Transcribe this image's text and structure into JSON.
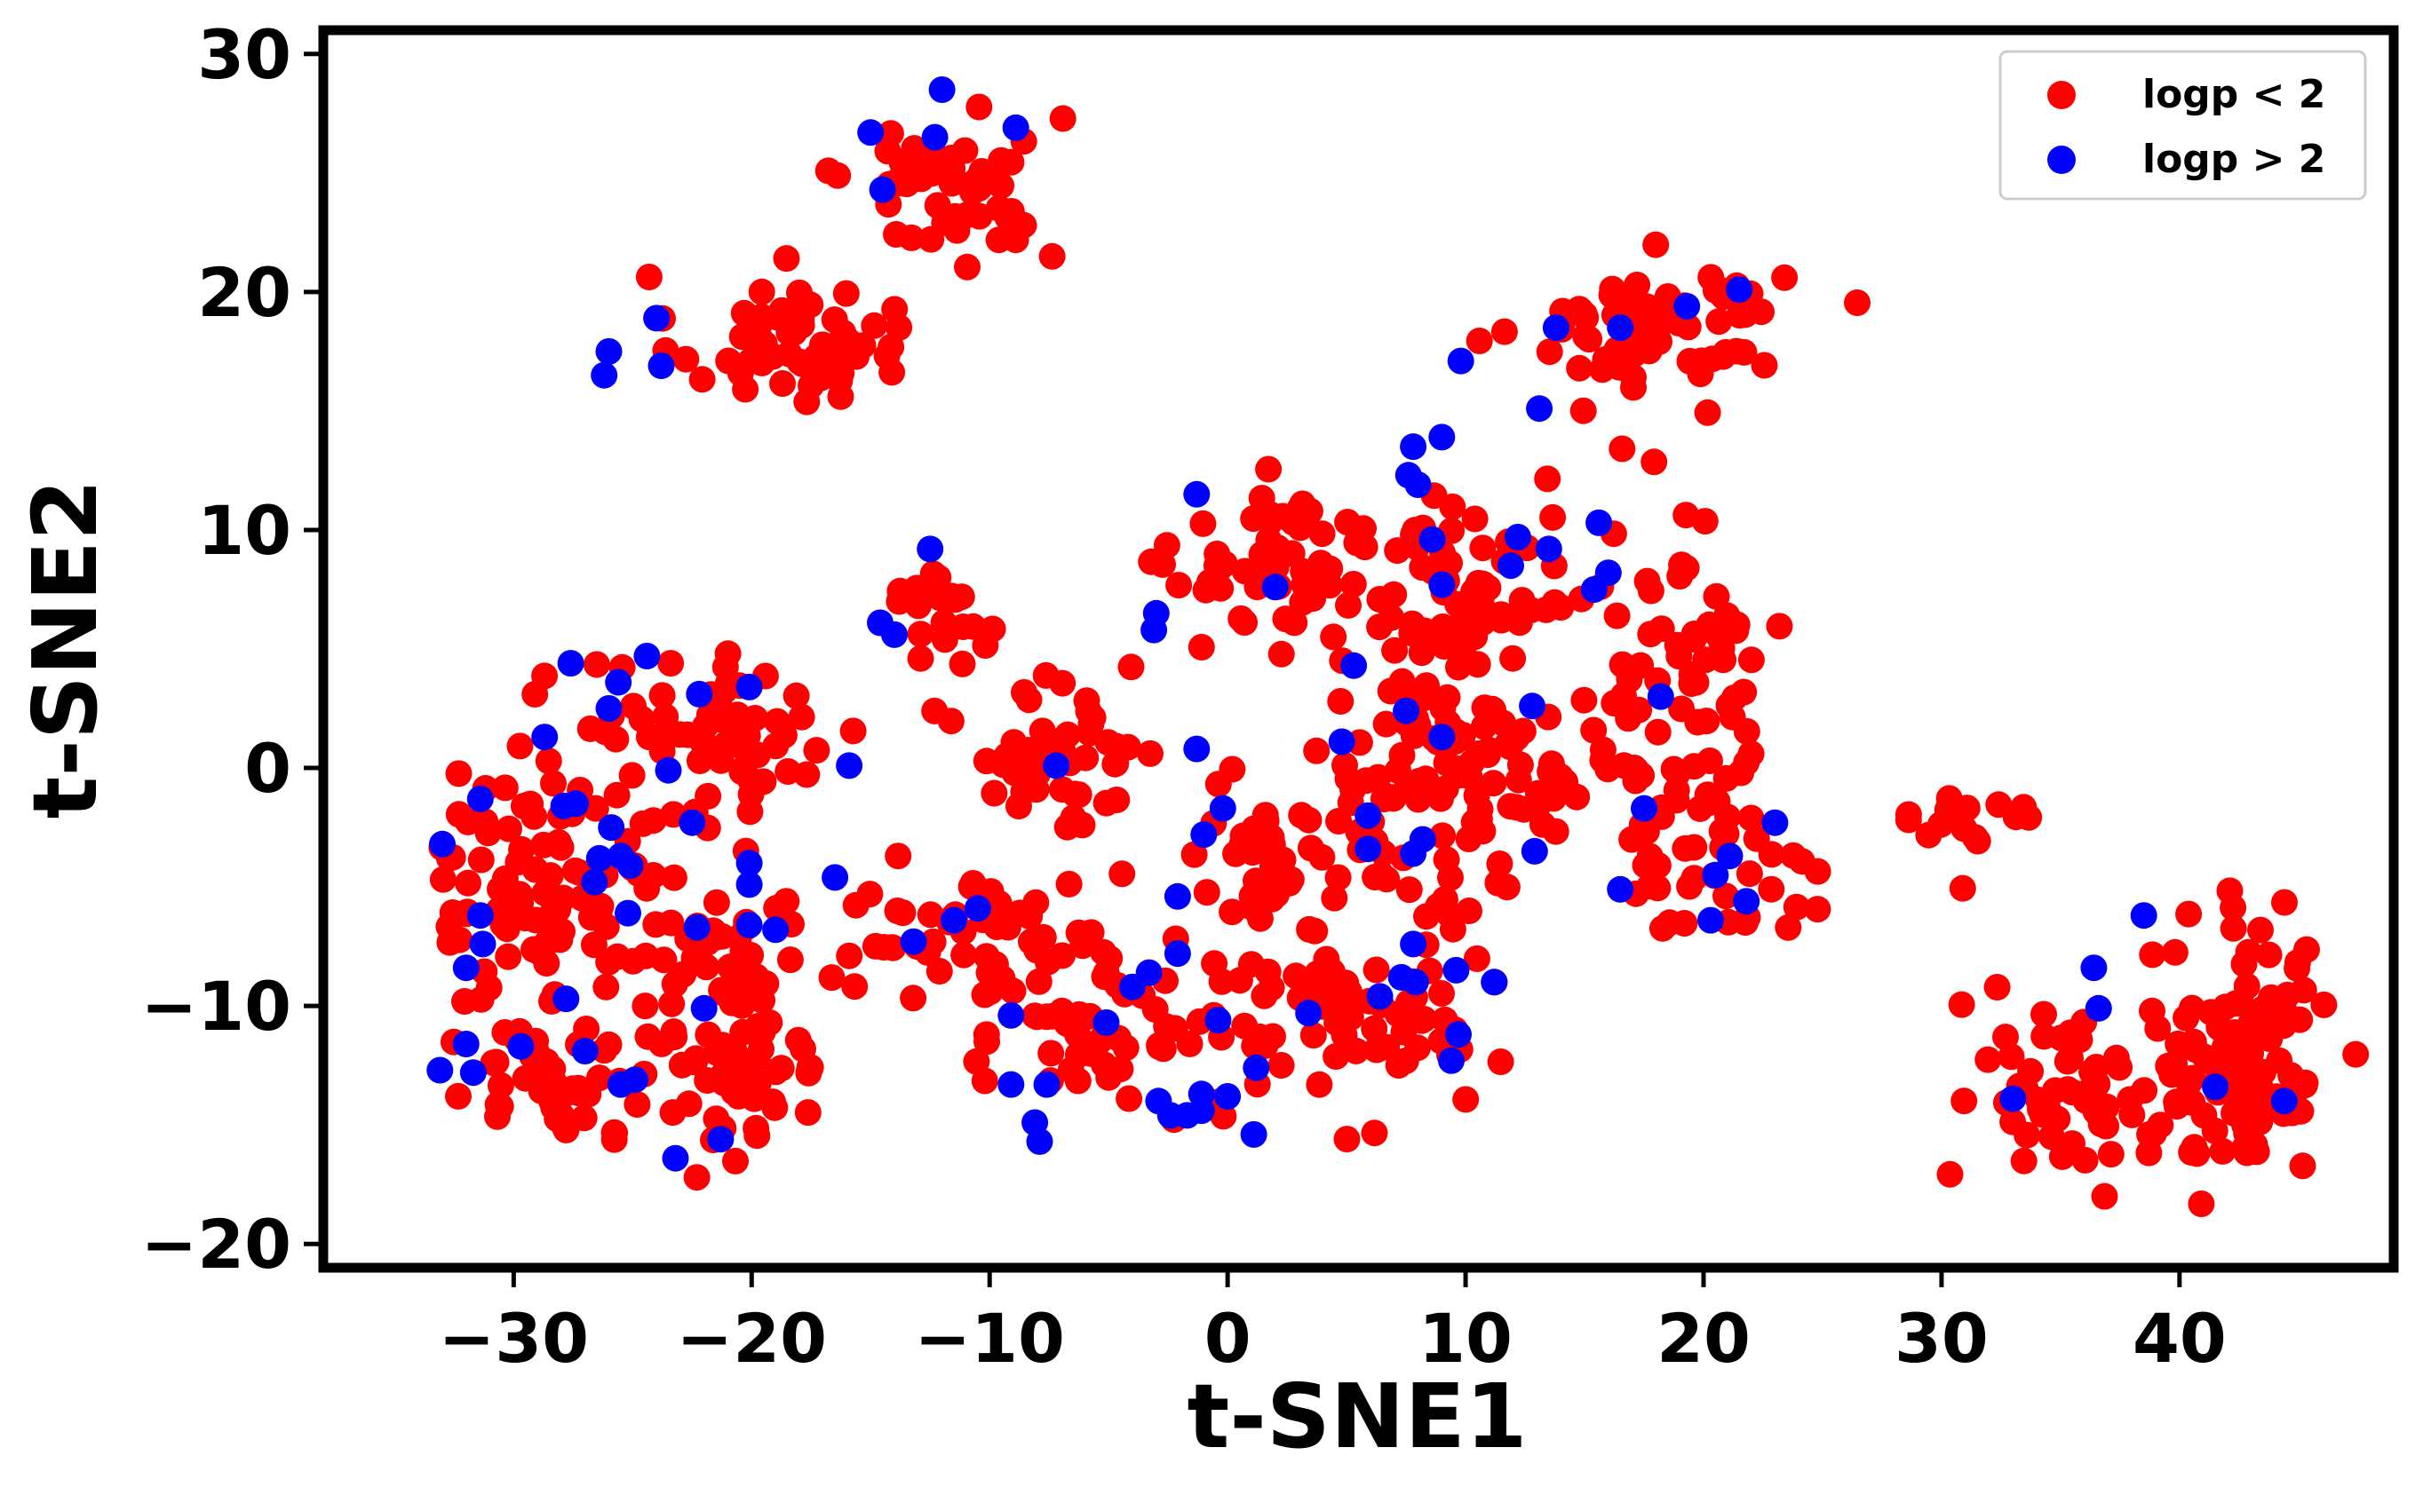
{
  "chart_data": {
    "type": "scatter",
    "title": "",
    "xlabel": "t-SNE1",
    "ylabel": "t-SNE2",
    "xlim": [
      -38,
      49
    ],
    "ylim": [
      -21,
      31
    ],
    "xticks": [
      -30,
      -20,
      -10,
      0,
      10,
      20,
      30,
      40
    ],
    "yticks": [
      -20,
      -10,
      0,
      10,
      20,
      30
    ],
    "xtick_labels": [
      "−30",
      "−20",
      "−10",
      "0",
      "10",
      "20",
      "30",
      "40"
    ],
    "ytick_labels": [
      "−20",
      "−10",
      "0",
      "10",
      "20",
      "30"
    ],
    "grid": false,
    "legend_position": "top-right",
    "series": [
      {
        "name": "logp < 2",
        "color": "#ff0000",
        "clusters": [
          {
            "cx": -18.5,
            "cy": 18.0,
            "sx": 3.2,
            "sy": 1.8,
            "n": 60
          },
          {
            "cx": -11.5,
            "cy": 24.5,
            "sx": 3.0,
            "sy": 2.2,
            "n": 55
          },
          {
            "cx": 18.0,
            "cy": 18.5,
            "sx": 3.5,
            "sy": 1.8,
            "n": 75
          },
          {
            "cx": -12.0,
            "cy": 7.0,
            "sx": 1.6,
            "sy": 1.5,
            "n": 20
          },
          {
            "cx": 2.0,
            "cy": 8.5,
            "sx": 2.8,
            "sy": 2.0,
            "n": 50
          },
          {
            "cx": 10.0,
            "cy": 7.0,
            "sx": 4.0,
            "sy": 3.5,
            "n": 80
          },
          {
            "cx": 19.0,
            "cy": 5.0,
            "sx": 3.0,
            "sy": 4.0,
            "n": 55
          },
          {
            "cx": -21.0,
            "cy": 1.5,
            "sx": 4.0,
            "sy": 2.0,
            "n": 60
          },
          {
            "cx": -7.0,
            "cy": 1.0,
            "sx": 3.0,
            "sy": 2.5,
            "n": 50
          },
          {
            "cx": 10.0,
            "cy": 0.0,
            "sx": 4.5,
            "sy": 2.5,
            "n": 85
          },
          {
            "cx": 20.0,
            "cy": -3.0,
            "sx": 3.0,
            "sy": 2.5,
            "n": 50
          },
          {
            "cx": -29.5,
            "cy": -5.0,
            "sx": 2.6,
            "sy": 3.5,
            "n": 75
          },
          {
            "cx": -22.0,
            "cy": -6.5,
            "sx": 3.0,
            "sy": 3.5,
            "n": 60
          },
          {
            "cx": -28.0,
            "cy": -13.0,
            "sx": 2.5,
            "sy": 1.8,
            "n": 50
          },
          {
            "cx": -20.5,
            "cy": -13.0,
            "sx": 2.5,
            "sy": 2.0,
            "n": 55
          },
          {
            "cx": -10.0,
            "cy": -7.0,
            "sx": 4.0,
            "sy": 1.8,
            "n": 50
          },
          {
            "cx": -6.0,
            "cy": -11.0,
            "sx": 3.0,
            "sy": 2.5,
            "n": 45
          },
          {
            "cx": 3.0,
            "cy": -4.0,
            "sx": 4.0,
            "sy": 2.0,
            "n": 55
          },
          {
            "cx": 3.5,
            "cy": -10.5,
            "sx": 3.5,
            "sy": 2.5,
            "n": 50
          },
          {
            "cx": 8.5,
            "cy": -10.0,
            "sx": 2.0,
            "sy": 2.5,
            "n": 25
          },
          {
            "cx": 31.0,
            "cy": -2.5,
            "sx": 1.8,
            "sy": 1.5,
            "n": 18
          },
          {
            "cx": 35.0,
            "cy": -13.5,
            "sx": 2.5,
            "sy": 2.8,
            "n": 60
          },
          {
            "cx": 42.5,
            "cy": -12.0,
            "sx": 2.5,
            "sy": 3.5,
            "n": 105
          }
        ]
      },
      {
        "name": "logp > 2",
        "color": "#0000ff",
        "points": [
          [
            -12,
            28.5
          ],
          [
            -15,
            26.7
          ],
          [
            -12.3,
            26.5
          ],
          [
            -8.9,
            26.9
          ],
          [
            -14.5,
            24.3
          ],
          [
            -26,
            17.5
          ],
          [
            -26.2,
            16.5
          ],
          [
            -24,
            18.9
          ],
          [
            -23.8,
            16.9
          ],
          [
            9.8,
            17.1
          ],
          [
            13.8,
            18.5
          ],
          [
            16.5,
            18.5
          ],
          [
            19.3,
            19.4
          ],
          [
            21.5,
            20.1
          ],
          [
            13.1,
            15.1
          ],
          [
            -1.3,
            11.5
          ],
          [
            -12.5,
            9.2
          ],
          [
            -3.0,
            6.5
          ],
          [
            -3.1,
            5.8
          ],
          [
            -14.6,
            6.1
          ],
          [
            -14.0,
            5.6
          ],
          [
            7.8,
            13.5
          ],
          [
            9.0,
            13.9
          ],
          [
            7.6,
            12.3
          ],
          [
            8.0,
            11.9
          ],
          [
            8.6,
            9.6
          ],
          [
            9.0,
            7.7
          ],
          [
            11.9,
            8.5
          ],
          [
            12.2,
            9.7
          ],
          [
            13.5,
            9.2
          ],
          [
            15.6,
            10.3
          ],
          [
            15.4,
            7.5
          ],
          [
            16.0,
            8.2
          ],
          [
            2.0,
            7.6
          ],
          [
            5.3,
            4.3
          ],
          [
            -27.6,
            4.4
          ],
          [
            -24.4,
            4.7
          ],
          [
            -25.6,
            3.6
          ],
          [
            -26.0,
            2.5
          ],
          [
            -22.2,
            3.1
          ],
          [
            -20.1,
            3.4
          ],
          [
            -28.7,
            1.3
          ],
          [
            -23.5,
            -0.1
          ],
          [
            -15.9,
            0.1
          ],
          [
            -7.2,
            0.1
          ],
          [
            -1.3,
            0.8
          ],
          [
            4.8,
            1.1
          ],
          [
            7.5,
            2.4
          ],
          [
            9.0,
            1.3
          ],
          [
            12.8,
            2.6
          ],
          [
            18.2,
            3.0
          ],
          [
            -31.4,
            -1.3
          ],
          [
            -27.9,
            -1.6
          ],
          [
            -27.4,
            -1.5
          ],
          [
            -33.0,
            -3.2
          ],
          [
            -25.9,
            -2.5
          ],
          [
            -26.4,
            -3.8
          ],
          [
            -25.5,
            -3.7
          ],
          [
            -25.1,
            -4.1
          ],
          [
            -26.6,
            -4.8
          ],
          [
            -22.5,
            -2.3
          ],
          [
            -20.1,
            -4.0
          ],
          [
            -20.1,
            -4.9
          ],
          [
            -16.5,
            -4.6
          ],
          [
            -31.4,
            -6.2
          ],
          [
            -25.2,
            -6.1
          ],
          [
            -20.1,
            -6.6
          ],
          [
            -19.0,
            -6.8
          ],
          [
            -22.3,
            -6.7
          ],
          [
            -31.3,
            -7.4
          ],
          [
            -13.2,
            -7.3
          ],
          [
            -10.5,
            -5.9
          ],
          [
            -11.5,
            -6.4
          ],
          [
            -0.2,
            -1.7
          ],
          [
            -1.0,
            -2.8
          ],
          [
            -2.1,
            -5.4
          ],
          [
            -2.1,
            -7.8
          ],
          [
            -3.3,
            -8.6
          ],
          [
            -4.0,
            -9.2
          ],
          [
            -32.0,
            -8.4
          ],
          [
            -27.8,
            -9.7
          ],
          [
            -22.0,
            -10.1
          ],
          [
            -9.1,
            -10.4
          ],
          [
            -5.1,
            -10.7
          ],
          [
            -0.4,
            -10.6
          ],
          [
            3.4,
            -10.3
          ],
          [
            5.9,
            -2.0
          ],
          [
            5.9,
            -3.4
          ],
          [
            7.8,
            -3.6
          ],
          [
            8.2,
            -3.0
          ],
          [
            7.3,
            -8.8
          ],
          [
            7.8,
            -7.4
          ],
          [
            7.9,
            -9.0
          ],
          [
            6.4,
            -9.6
          ],
          [
            9.6,
            -8.5
          ],
          [
            11.2,
            -9.0
          ],
          [
            9.7,
            -11.2
          ],
          [
            9.4,
            -12.3
          ],
          [
            12.9,
            -3.5
          ],
          [
            17.5,
            -1.7
          ],
          [
            16.5,
            -5.1
          ],
          [
            21.1,
            -3.7
          ],
          [
            23.0,
            -2.3
          ],
          [
            20.5,
            -4.5
          ],
          [
            21.8,
            -5.6
          ],
          [
            20.3,
            -6.4
          ],
          [
            -33.1,
            -12.7
          ],
          [
            -32.0,
            -11.6
          ],
          [
            -31.7,
            -12.8
          ],
          [
            -29.7,
            -11.7
          ],
          [
            -27.0,
            -11.9
          ],
          [
            -25.5,
            -13.3
          ],
          [
            -24.9,
            -13.1
          ],
          [
            -9.1,
            -13.3
          ],
          [
            -7.6,
            -13.3
          ],
          [
            -8.1,
            -14.9
          ],
          [
            -7.9,
            -15.7
          ],
          [
            -23.2,
            -16.4
          ],
          [
            -21.3,
            -15.6
          ],
          [
            -2.9,
            -14.0
          ],
          [
            -2.4,
            -14.6
          ],
          [
            -1.7,
            -14.6
          ],
          [
            -1.1,
            -13.7
          ],
          [
            -1.1,
            -14.4
          ],
          [
            0.0,
            -13.8
          ],
          [
            1.2,
            -12.6
          ],
          [
            1.1,
            -15.4
          ],
          [
            38.5,
            -6.2
          ],
          [
            36.4,
            -8.4
          ],
          [
            36.6,
            -10.1
          ],
          [
            33.0,
            -13.9
          ],
          [
            41.5,
            -13.4
          ],
          [
            44.4,
            -14.0
          ]
        ]
      }
    ]
  }
}
